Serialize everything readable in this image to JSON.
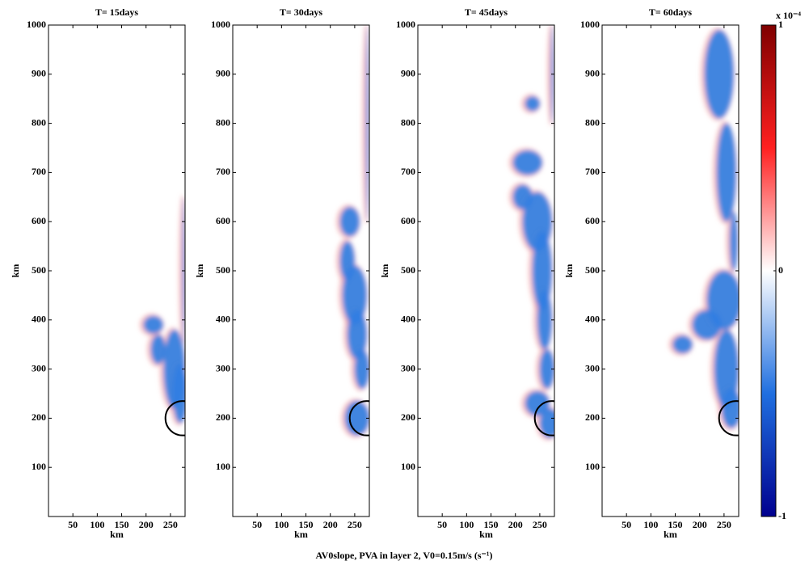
{
  "figure_title": "AV0slope, PVA in layer 2, V0=0.15m/s (s⁻¹)",
  "chart_data": [
    {
      "type": "heatmap",
      "title": "T= 15days",
      "xlabel": "km",
      "ylabel": "km",
      "xlim": [
        0,
        280
      ],
      "ylim": [
        0,
        1000
      ],
      "xticks": [
        50,
        100,
        150,
        200,
        250
      ],
      "yticks": [
        100,
        200,
        300,
        400,
        500,
        600,
        700,
        800,
        900,
        1000
      ],
      "circle": {
        "x": 275,
        "y": 200,
        "r": 35
      }
    },
    {
      "type": "heatmap",
      "title": "T= 30days",
      "xlabel": "km",
      "ylabel": "km",
      "xlim": [
        0,
        280
      ],
      "ylim": [
        0,
        1000
      ],
      "xticks": [
        50,
        100,
        150,
        200,
        250
      ],
      "yticks": [
        100,
        200,
        300,
        400,
        500,
        600,
        700,
        800,
        900,
        1000
      ],
      "circle": {
        "x": 275,
        "y": 200,
        "r": 35
      }
    },
    {
      "type": "heatmap",
      "title": "T= 45days",
      "xlabel": "km",
      "ylabel": "km",
      "xlim": [
        0,
        280
      ],
      "ylim": [
        0,
        1000
      ],
      "xticks": [
        50,
        100,
        150,
        200,
        250
      ],
      "yticks": [
        100,
        200,
        300,
        400,
        500,
        600,
        700,
        800,
        900,
        1000
      ],
      "circle": {
        "x": 275,
        "y": 200,
        "r": 35
      }
    },
    {
      "type": "heatmap",
      "title": "T= 60days",
      "xlabel": "km",
      "ylabel": "km",
      "xlim": [
        0,
        280
      ],
      "ylim": [
        0,
        1000
      ],
      "xticks": [
        50,
        100,
        150,
        200,
        250
      ],
      "yticks": [
        100,
        200,
        300,
        400,
        500,
        600,
        700,
        800,
        900,
        1000
      ],
      "circle": {
        "x": 275,
        "y": 200,
        "r": 35
      }
    },
    {
      "type": "colorbar",
      "multiplier": "x 10⁻⁴",
      "ylim": [
        -1,
        1
      ],
      "yticks": [
        -1,
        0,
        1
      ],
      "colors": [
        "#00008f",
        "#1f6fe0",
        "#ffffff",
        "#ff2020",
        "#7f0000"
      ]
    }
  ]
}
